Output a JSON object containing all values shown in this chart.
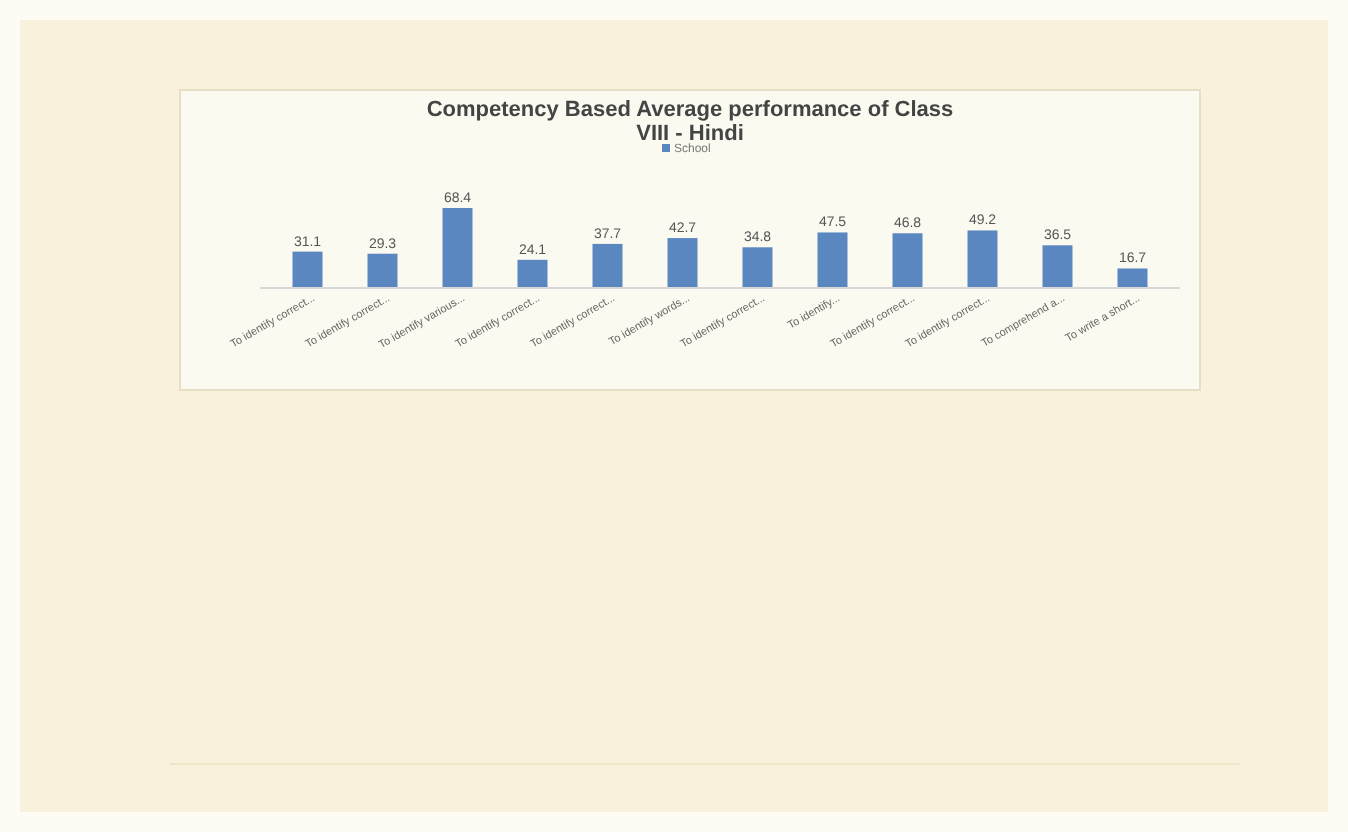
{
  "chart_data": {
    "type": "bar",
    "title": "Competency Based  Average performance of Class VIII - Hindi",
    "categories": [
      "To identify correct...",
      "To identify correct...",
      "To identify various...",
      "To identify correct...",
      "To identify correct...",
      "To identify words...",
      "To identify correct...",
      "To identify...",
      "To identify correct...",
      "To identify correct...",
      "To comprehend a...",
      "To write a short..."
    ],
    "series": [
      {
        "name": "School",
        "color": "#5b87c0",
        "values": [
          31.1,
          29.3,
          68.4,
          24.1,
          37.7,
          42.7,
          34.8,
          47.5,
          46.8,
          49.2,
          36.5,
          16.7
        ]
      }
    ],
    "data_labels": true,
    "legend": "top",
    "grid": false
  }
}
